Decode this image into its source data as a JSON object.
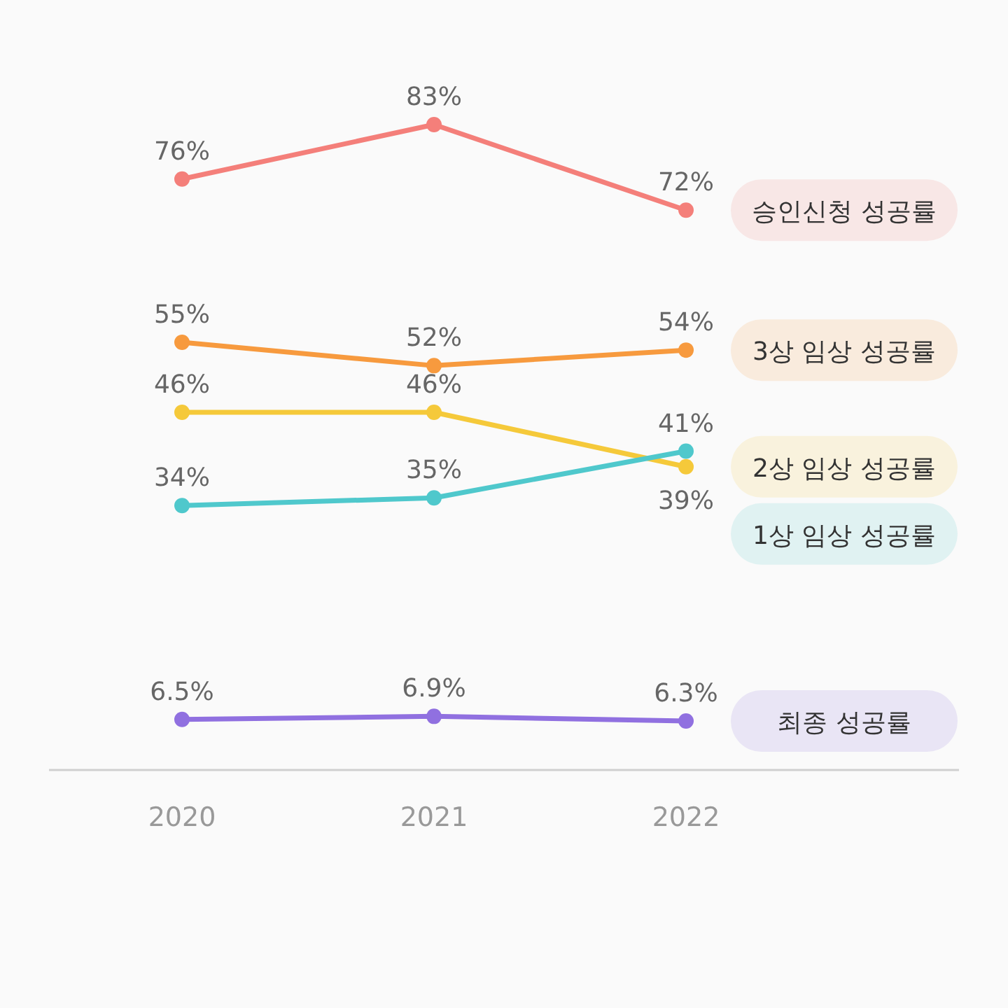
{
  "chart_data": {
    "type": "line",
    "categories": [
      "2020",
      "2021",
      "2022"
    ],
    "tick_labels": "x",
    "grid": false,
    "legend": "right",
    "marker": "circle",
    "line_style": "solid",
    "series": [
      {
        "name": "승인신청 성공률",
        "color": "#f47f7a",
        "values": [
          76,
          83,
          72
        ],
        "value_labels": [
          "76%",
          "83%",
          "72%"
        ]
      },
      {
        "name": "3상 임상 성공률",
        "color": "#f79a3e",
        "values": [
          55,
          52,
          54
        ],
        "value_labels": [
          "55%",
          "52%",
          "54%"
        ]
      },
      {
        "name": "2상 임상 성공률",
        "color": "#f5c93a",
        "values": [
          46,
          46,
          39
        ],
        "value_labels": [
          "46%",
          "46%",
          "39%"
        ]
      },
      {
        "name": "1상 임상 성공률",
        "color": "#4fc8cc",
        "values": [
          34,
          35,
          41
        ],
        "value_labels": [
          "34%",
          "35%",
          "41%"
        ]
      },
      {
        "name": "최종 성공률",
        "color": "#9070e0",
        "values": [
          6.5,
          6.9,
          6.3
        ],
        "value_labels": [
          "6.5%",
          "6.9%",
          "6.3%"
        ]
      }
    ]
  }
}
